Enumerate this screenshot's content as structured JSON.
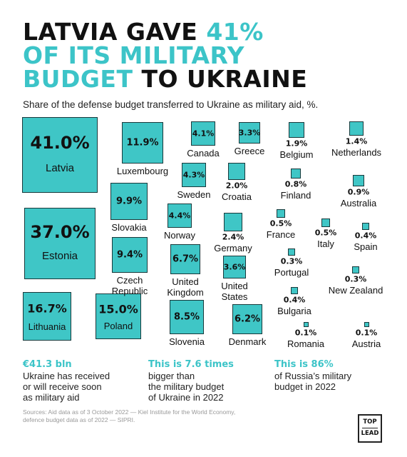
{
  "headline": {
    "line1_a": "LATVIA GAVE ",
    "line1_b": "41%",
    "line2": "OF ITS MILITARY",
    "line3_a": "BUDGET",
    "line3_b": " TO UKRAINE"
  },
  "subtitle": "Share of the defense budget transferred to Ukraine as military aid, %.",
  "chart_data": {
    "type": "bubble-squares",
    "title": "Share of the defense budget transferred to Ukraine as military aid, %.",
    "points": [
      {
        "country": "Latvia",
        "value": 41.0,
        "label": "41.0%"
      },
      {
        "country": "Estonia",
        "value": 37.0,
        "label": "37.0%"
      },
      {
        "country": "Lithuania",
        "value": 16.7,
        "label": "16.7%"
      },
      {
        "country": "Poland",
        "value": 15.0,
        "label": "15.0%"
      },
      {
        "country": "Luxembourg",
        "value": 11.9,
        "label": "11.9%"
      },
      {
        "country": "Slovakia",
        "value": 9.9,
        "label": "9.9%"
      },
      {
        "country": "Czech Republic",
        "value": 9.4,
        "label": "9.4%"
      },
      {
        "country": "Slovenia",
        "value": 8.5,
        "label": "8.5%"
      },
      {
        "country": "United Kingdom",
        "value": 6.7,
        "label": "6.7%"
      },
      {
        "country": "Denmark",
        "value": 6.2,
        "label": "6.2%"
      },
      {
        "country": "Norway",
        "value": 4.4,
        "label": "4.4%"
      },
      {
        "country": "Sweden",
        "value": 4.3,
        "label": "4.3%"
      },
      {
        "country": "Canada",
        "value": 4.1,
        "label": "4.1%"
      },
      {
        "country": "United States",
        "value": 3.6,
        "label": "3.6%"
      },
      {
        "country": "Greece",
        "value": 3.3,
        "label": "3.3%"
      },
      {
        "country": "Germany",
        "value": 2.4,
        "label": "2.4%"
      },
      {
        "country": "Croatia",
        "value": 2.0,
        "label": "2.0%"
      },
      {
        "country": "Belgium",
        "value": 1.9,
        "label": "1.9%"
      },
      {
        "country": "Netherlands",
        "value": 1.4,
        "label": "1.4%"
      },
      {
        "country": "Finland",
        "value": 0.8,
        "label": "0.8%"
      },
      {
        "country": "Australia",
        "value": 0.9,
        "label": "0.9%"
      },
      {
        "country": "France",
        "value": 0.5,
        "label": "0.5%"
      },
      {
        "country": "Italy",
        "value": 0.5,
        "label": "0.5%"
      },
      {
        "country": "Spain",
        "value": 0.4,
        "label": "0.4%"
      },
      {
        "country": "Portugal",
        "value": 0.3,
        "label": "0.3%"
      },
      {
        "country": "New Zealand",
        "value": 0.3,
        "label": "0.3%"
      },
      {
        "country": "Bulgaria",
        "value": 0.4,
        "label": "0.4%"
      },
      {
        "country": "Romania",
        "value": 0.1,
        "label": "0.1%"
      },
      {
        "country": "Austria",
        "value": 0.1,
        "label": "0.1%"
      }
    ]
  },
  "facts": [
    {
      "highlight": "€41.3 bln",
      "text": [
        "Ukraine has received",
        "or will receive soon",
        "as military aid"
      ]
    },
    {
      "highlight": "This is 7.6 times",
      "text": [
        "bigger than",
        "the military budget",
        "of Ukraine in 2022"
      ]
    },
    {
      "highlight": "This is 86%",
      "text": [
        "of Russia’s military",
        "budget in 2022"
      ]
    }
  ],
  "sources": "Sources: Aid data as of 3 October 2022 — Kiel Institute for the World Economy, defence budget data as of 2022 — SIPRI.",
  "logo": {
    "top": "TOP",
    "bottom": "LEAD"
  },
  "colors": {
    "accent": "#3cc4c8",
    "square": "#3fc6c6",
    "text": "#111111"
  }
}
